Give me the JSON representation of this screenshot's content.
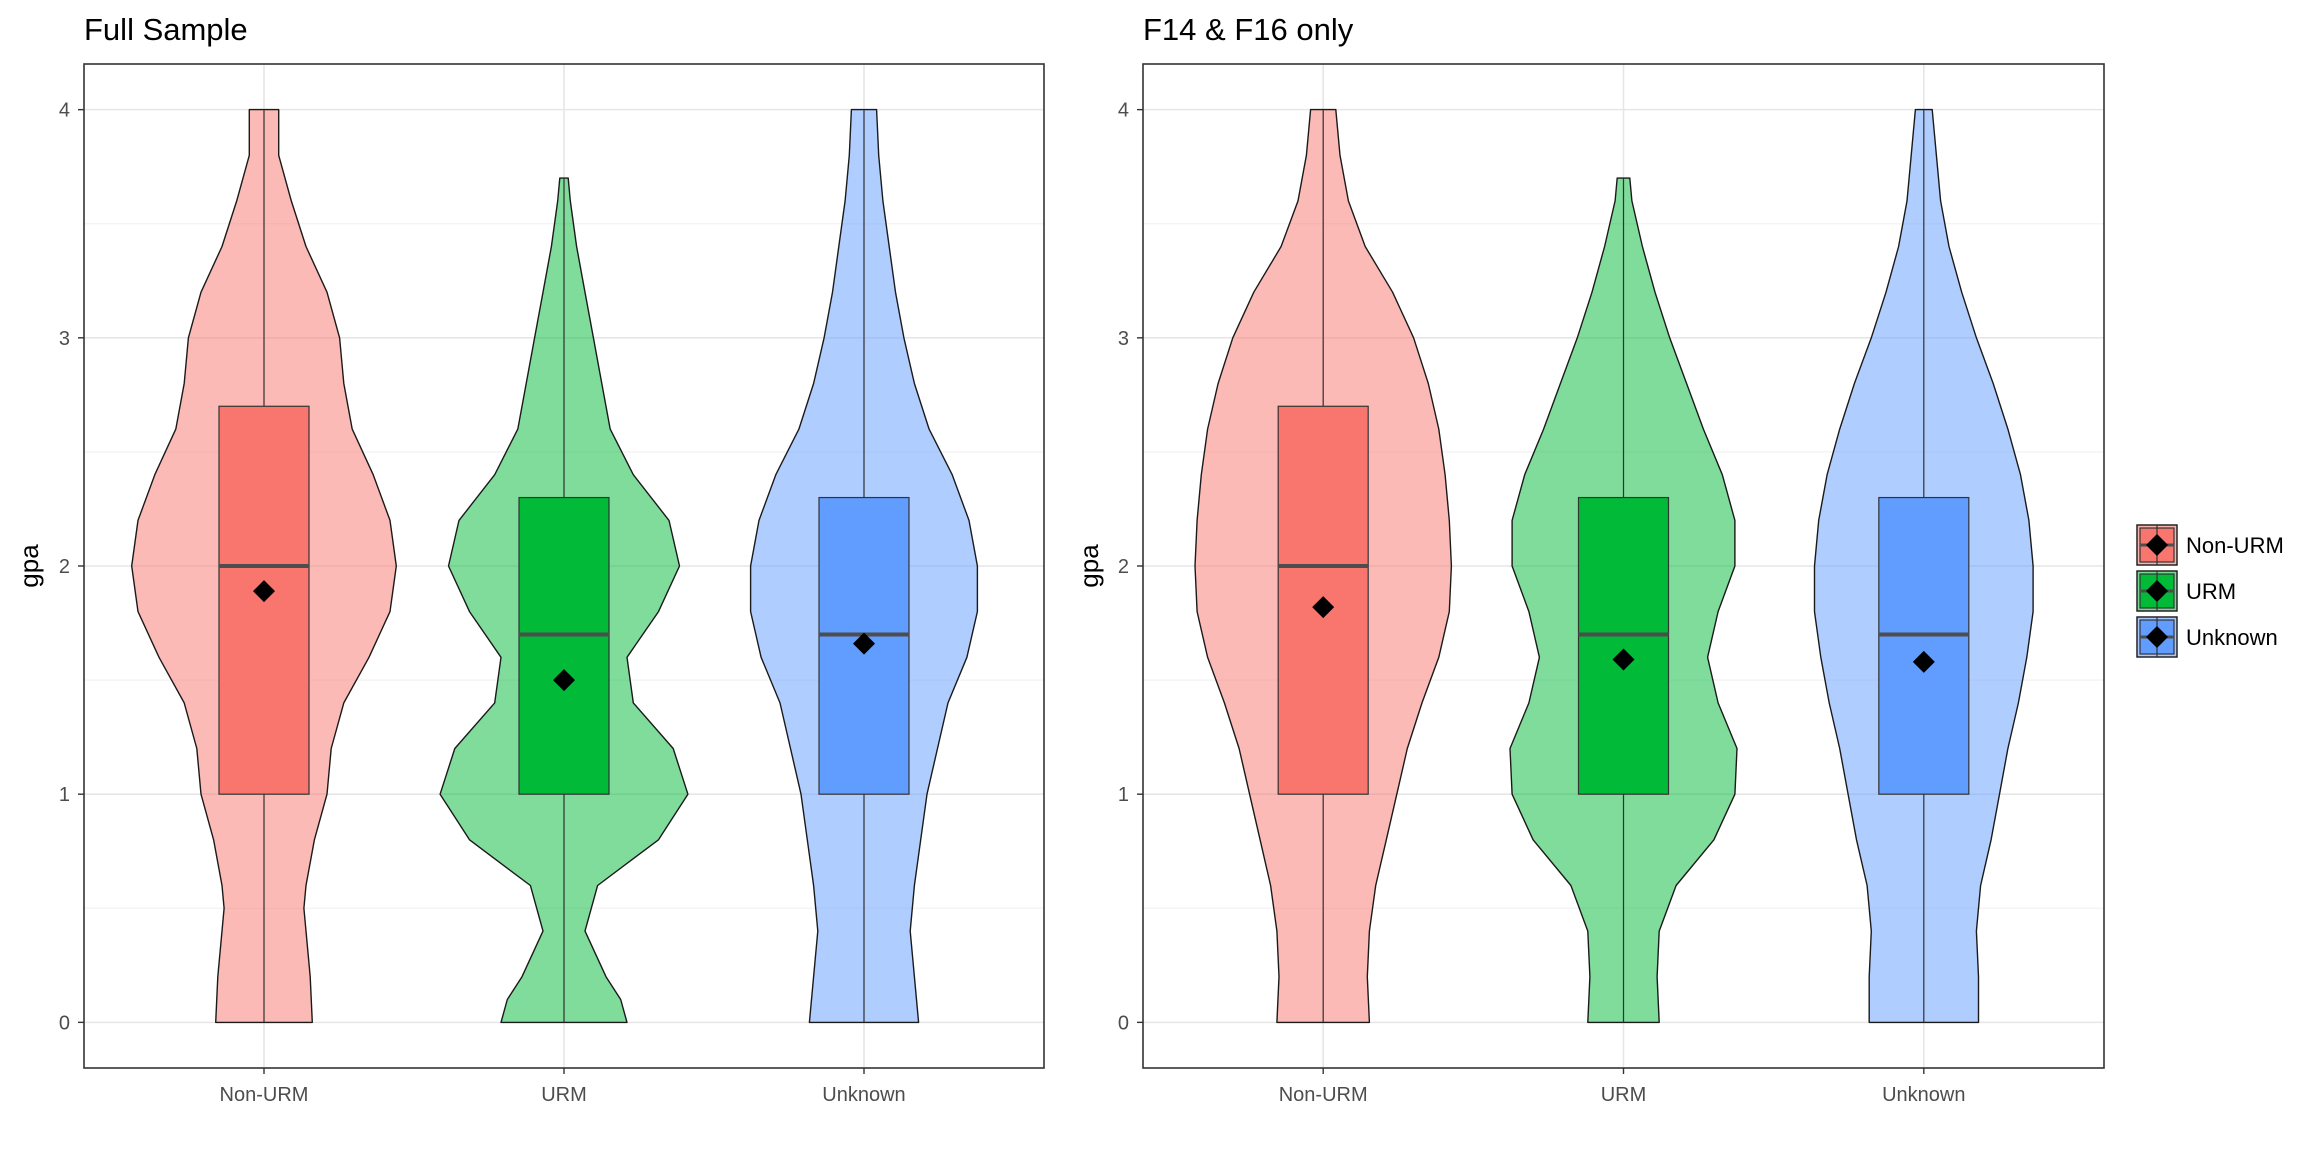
{
  "chart_data": [
    {
      "type": "violin",
      "title": "Full Sample",
      "xlabel": "",
      "ylabel": "gpa",
      "ylim": [
        -0.2,
        4.2
      ],
      "yticks": [
        0,
        1,
        2,
        3,
        4
      ],
      "categories": [
        "Non-URM",
        "URM",
        "Unknown"
      ],
      "grid": true,
      "groups": [
        {
          "category": "Non-URM",
          "color": "#F8766D",
          "ymin": 0,
          "ymax": 4.0,
          "q1": 1.0,
          "median": 2.0,
          "q3": 2.7,
          "mean": 1.89,
          "density": [
            [
              0,
              0.23
            ],
            [
              0.2,
              0.22
            ],
            [
              0.4,
              0.2
            ],
            [
              0.5,
              0.19
            ],
            [
              0.6,
              0.2
            ],
            [
              0.8,
              0.24
            ],
            [
              1.0,
              0.3
            ],
            [
              1.2,
              0.32
            ],
            [
              1.4,
              0.38
            ],
            [
              1.6,
              0.5
            ],
            [
              1.8,
              0.6
            ],
            [
              2.0,
              0.63
            ],
            [
              2.2,
              0.6
            ],
            [
              2.4,
              0.52
            ],
            [
              2.6,
              0.42
            ],
            [
              2.8,
              0.38
            ],
            [
              3.0,
              0.36
            ],
            [
              3.2,
              0.3
            ],
            [
              3.4,
              0.2
            ],
            [
              3.6,
              0.13
            ],
            [
              3.8,
              0.07
            ],
            [
              4.0,
              0.07
            ]
          ]
        },
        {
          "category": "URM",
          "color": "#00BA38",
          "ymin": 0,
          "ymax": 3.7,
          "q1": 1.0,
          "median": 1.7,
          "q3": 2.3,
          "mean": 1.5,
          "density": [
            [
              0,
              0.3
            ],
            [
              0.1,
              0.27
            ],
            [
              0.2,
              0.2
            ],
            [
              0.4,
              0.1
            ],
            [
              0.6,
              0.16
            ],
            [
              0.8,
              0.45
            ],
            [
              1.0,
              0.59
            ],
            [
              1.2,
              0.52
            ],
            [
              1.4,
              0.33
            ],
            [
              1.6,
              0.3
            ],
            [
              1.8,
              0.45
            ],
            [
              2.0,
              0.55
            ],
            [
              2.2,
              0.5
            ],
            [
              2.4,
              0.33
            ],
            [
              2.6,
              0.22
            ],
            [
              2.8,
              0.18
            ],
            [
              3.0,
              0.14
            ],
            [
              3.2,
              0.1
            ],
            [
              3.4,
              0.06
            ],
            [
              3.6,
              0.03
            ],
            [
              3.7,
              0.02
            ]
          ]
        },
        {
          "category": "Unknown",
          "color": "#619CFF",
          "ymin": 0,
          "ymax": 4.0,
          "q1": 1.0,
          "median": 1.7,
          "q3": 2.3,
          "mean": 1.66,
          "density": [
            [
              0,
              0.26
            ],
            [
              0.2,
              0.24
            ],
            [
              0.4,
              0.22
            ],
            [
              0.6,
              0.24
            ],
            [
              0.8,
              0.27
            ],
            [
              1.0,
              0.3
            ],
            [
              1.2,
              0.35
            ],
            [
              1.4,
              0.4
            ],
            [
              1.6,
              0.49
            ],
            [
              1.8,
              0.54
            ],
            [
              2.0,
              0.54
            ],
            [
              2.2,
              0.5
            ],
            [
              2.4,
              0.42
            ],
            [
              2.6,
              0.31
            ],
            [
              2.8,
              0.24
            ],
            [
              3.0,
              0.19
            ],
            [
              3.2,
              0.15
            ],
            [
              3.4,
              0.12
            ],
            [
              3.6,
              0.09
            ],
            [
              3.8,
              0.07
            ],
            [
              4.0,
              0.06
            ]
          ]
        }
      ]
    },
    {
      "type": "violin",
      "title": "F14 & F16 only",
      "xlabel": "",
      "ylabel": "gpa",
      "ylim": [
        -0.2,
        4.2
      ],
      "yticks": [
        0,
        1,
        2,
        3,
        4
      ],
      "categories": [
        "Non-URM",
        "URM",
        "Unknown"
      ],
      "grid": true,
      "groups": [
        {
          "category": "Non-URM",
          "color": "#F8766D",
          "ymin": 0,
          "ymax": 4.0,
          "q1": 1.0,
          "median": 2.0,
          "q3": 2.7,
          "mean": 1.82,
          "density": [
            [
              0,
              0.22
            ],
            [
              0.2,
              0.21
            ],
            [
              0.4,
              0.22
            ],
            [
              0.6,
              0.25
            ],
            [
              0.8,
              0.3
            ],
            [
              1.0,
              0.35
            ],
            [
              1.2,
              0.4
            ],
            [
              1.4,
              0.47
            ],
            [
              1.6,
              0.55
            ],
            [
              1.8,
              0.6
            ],
            [
              2.0,
              0.61
            ],
            [
              2.2,
              0.6
            ],
            [
              2.4,
              0.58
            ],
            [
              2.6,
              0.55
            ],
            [
              2.8,
              0.5
            ],
            [
              3.0,
              0.43
            ],
            [
              3.2,
              0.33
            ],
            [
              3.4,
              0.2
            ],
            [
              3.6,
              0.12
            ],
            [
              3.8,
              0.08
            ],
            [
              4.0,
              0.06
            ]
          ]
        },
        {
          "category": "URM",
          "color": "#00BA38",
          "ymin": 0,
          "ymax": 3.7,
          "q1": 1.0,
          "median": 1.7,
          "q3": 2.3,
          "mean": 1.59,
          "density": [
            [
              0,
              0.17
            ],
            [
              0.2,
              0.16
            ],
            [
              0.4,
              0.17
            ],
            [
              0.6,
              0.25
            ],
            [
              0.8,
              0.43
            ],
            [
              1.0,
              0.53
            ],
            [
              1.2,
              0.54
            ],
            [
              1.4,
              0.45
            ],
            [
              1.6,
              0.4
            ],
            [
              1.8,
              0.45
            ],
            [
              2.0,
              0.53
            ],
            [
              2.2,
              0.53
            ],
            [
              2.4,
              0.47
            ],
            [
              2.6,
              0.38
            ],
            [
              2.8,
              0.3
            ],
            [
              3.0,
              0.22
            ],
            [
              3.2,
              0.15
            ],
            [
              3.4,
              0.09
            ],
            [
              3.6,
              0.04
            ],
            [
              3.7,
              0.03
            ]
          ]
        },
        {
          "category": "Unknown",
          "color": "#619CFF",
          "ymin": 0,
          "ymax": 4.0,
          "q1": 1.0,
          "median": 1.7,
          "q3": 2.3,
          "mean": 1.58,
          "density": [
            [
              0,
              0.26
            ],
            [
              0.2,
              0.26
            ],
            [
              0.4,
              0.25
            ],
            [
              0.6,
              0.27
            ],
            [
              0.8,
              0.32
            ],
            [
              1.0,
              0.36
            ],
            [
              1.2,
              0.4
            ],
            [
              1.4,
              0.45
            ],
            [
              1.6,
              0.49
            ],
            [
              1.8,
              0.52
            ],
            [
              2.0,
              0.52
            ],
            [
              2.2,
              0.5
            ],
            [
              2.4,
              0.46
            ],
            [
              2.6,
              0.4
            ],
            [
              2.8,
              0.33
            ],
            [
              3.0,
              0.25
            ],
            [
              3.2,
              0.18
            ],
            [
              3.4,
              0.12
            ],
            [
              3.6,
              0.08
            ],
            [
              3.8,
              0.06
            ],
            [
              4.0,
              0.04
            ]
          ]
        }
      ]
    }
  ],
  "legend": {
    "position": "right",
    "items": [
      {
        "label": "Non-URM",
        "color": "#F8766D"
      },
      {
        "label": "URM",
        "color": "#00BA38"
      },
      {
        "label": "Unknown",
        "color": "#619CFF"
      }
    ]
  }
}
